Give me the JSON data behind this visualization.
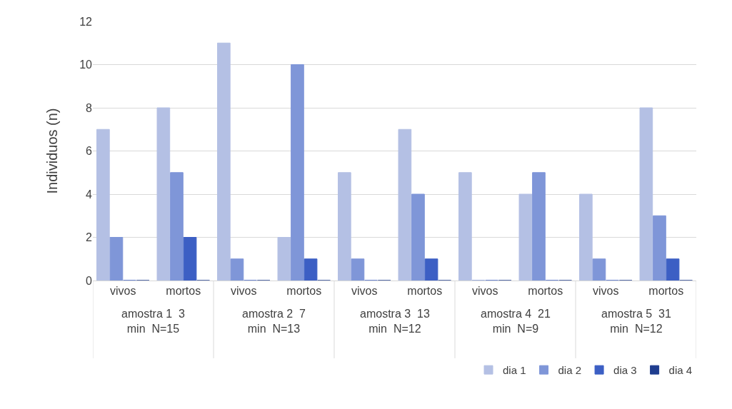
{
  "chart_data": {
    "type": "bar",
    "ylabel": "Individuos (n)",
    "categories": [
      "vivos",
      "mortos",
      "vivos",
      "mortos",
      "vivos",
      "mortos",
      "vivos",
      "mortos",
      "vivos",
      "mortos"
    ],
    "annotations": [
      "amostra 1  3 min  N=15",
      "amostra 2  7 min  N=13",
      "amostra 3  13 min  N=12",
      "amostra 4  21 min  N=9",
      "amostra 5  31 min  N=12"
    ],
    "series": [
      {
        "name": "dia 1",
        "color": "#b4c0e4",
        "values": [
          7,
          8,
          11,
          2,
          5,
          7,
          5,
          4,
          4,
          8
        ]
      },
      {
        "name": "dia 2",
        "color": "#7f96d8",
        "values": [
          2,
          5,
          1,
          10,
          1,
          4,
          0,
          5,
          1,
          3
        ]
      },
      {
        "name": "dia 3",
        "color": "#3c5fc4",
        "values": [
          0,
          2,
          0,
          1,
          0,
          1,
          0,
          0,
          0,
          1
        ]
      },
      {
        "name": "dia 4",
        "color": "#1f3d8f",
        "values": [
          0,
          0,
          0,
          0,
          0,
          0,
          0,
          0,
          0,
          0
        ]
      }
    ],
    "ylim": [
      0,
      12
    ],
    "yticks": [
      0,
      2,
      4,
      6,
      8,
      10,
      12
    ],
    "grid": "y",
    "legend": "bottom right"
  }
}
